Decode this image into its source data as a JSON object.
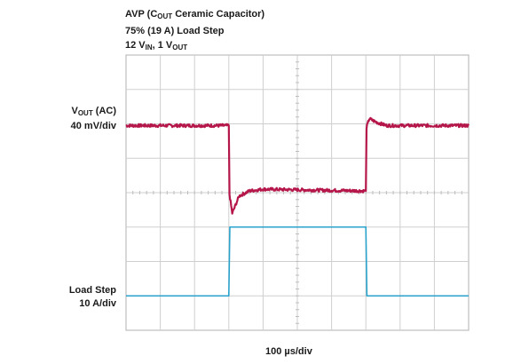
{
  "header": {
    "line1_prefix": "AVP (C",
    "line1_sub": "OUT",
    "line1_suffix": " Ceramic Capacitor)",
    "line2": "75% (19 A) Load Step",
    "line3_a": "12 V",
    "line3_a_sub": "IN",
    "line3_sep": ", 1 V",
    "line3_b_sub": "OUT"
  },
  "labels": {
    "vout_prefix": "V",
    "vout_sub": "OUT",
    "vout_suffix": " (AC)",
    "vout_scale": "40 mV/div",
    "load_name": "Load Step",
    "load_scale": "10 A/div",
    "time_scale": "100 µs/div"
  },
  "chart_data": {
    "type": "line",
    "grid": true,
    "x_divisions": 10,
    "y_divisions": 8,
    "series": [
      {
        "label": "VOUT (AC)",
        "color": "#b5174a",
        "x": [
          0,
          3.0,
          3.02,
          3.1,
          3.3,
          3.6,
          4.0,
          7.0,
          7.02,
          7.1,
          7.3,
          7.6,
          8.0,
          10
        ],
        "y": [
          5.95,
          5.95,
          3.95,
          3.4,
          3.9,
          4.05,
          4.1,
          4.05,
          5.9,
          6.15,
          6.05,
          5.95,
          5.95,
          5.95
        ]
      },
      {
        "label": "Load Step",
        "color": "#2aa3cc",
        "x": [
          0,
          3.0,
          3.03,
          7.0,
          7.03,
          10
        ],
        "y": [
          1.0,
          1.0,
          3.0,
          3.0,
          1.0,
          1.0
        ]
      }
    ]
  }
}
